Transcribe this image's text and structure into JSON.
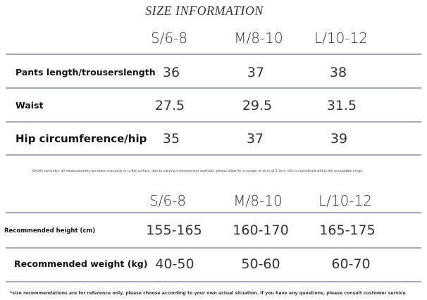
{
  "title": "SIZE INFORMATION",
  "size_table": {
    "headers": [
      "S/6-8",
      "M/8-10",
      "L/10-12"
    ],
    "rows": [
      {
        "label": "Pants length/trouserslength",
        "values": [
          "36",
          "37",
          "38"
        ]
      },
      {
        "label": "Waist",
        "values": [
          "27.5",
          "29.5",
          "31.5"
        ]
      },
      {
        "label": "Hip circumference/hip",
        "values": [
          "35",
          "37",
          "39"
        ]
      }
    ]
  },
  "reminder": "Gentle reminder: all measurements are taken manually on a flat surface. due to varying measurement methods, please allow for a margin of error of 1-3cm. this is considered within the acceptable range",
  "recommend_table": {
    "headers": [
      "S/6-8",
      "M/8-10",
      "L/10-12"
    ],
    "rows": [
      {
        "label": "Recommended height (cm)",
        "values": [
          "155-165",
          "160-170",
          "165-175"
        ]
      },
      {
        "label": "Recommended weight (kg)",
        "values": [
          "40-50",
          "50-60",
          "60-70"
        ]
      }
    ]
  },
  "footnote": "*size recommendations are for reference only, please choose according to your own actual situation. if you have any questions, please consult customer service"
}
